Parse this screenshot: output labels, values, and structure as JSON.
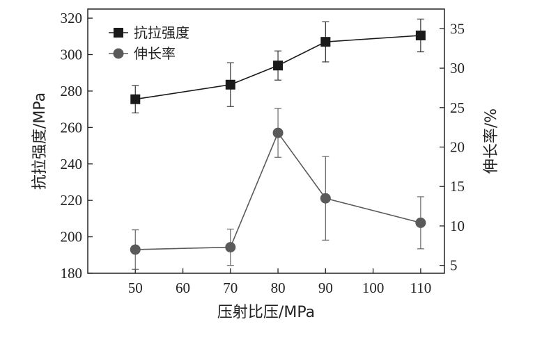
{
  "chart_data": {
    "type": "line",
    "x": [
      50,
      70,
      80,
      90,
      110
    ],
    "xlabel": "压射比压/MPa",
    "ylabel": "抗拉强度/MPa",
    "y2label": "伸长率/%",
    "xlim": [
      40,
      115
    ],
    "ylim": [
      180,
      325
    ],
    "y2lim": [
      4,
      37.5
    ],
    "xticks": [
      50,
      60,
      70,
      80,
      90,
      100,
      110
    ],
    "yticks": [
      180,
      200,
      220,
      240,
      260,
      280,
      300,
      320
    ],
    "y2ticks": [
      5,
      10,
      15,
      20,
      25,
      30,
      35
    ],
    "legend_position": "top-left",
    "grid": false,
    "series": [
      {
        "name": "抗拉强度",
        "axis": "left",
        "marker": "square",
        "color": "#1a1a1a",
        "values": [
          275.5,
          283.5,
          294,
          307,
          310.5
        ],
        "error": [
          7.5,
          12,
          8,
          11,
          9
        ]
      },
      {
        "name": "伸长率",
        "axis": "right",
        "marker": "circle",
        "color": "#5a5a5a",
        "values": [
          7,
          7.3,
          21.8,
          13.5,
          10.4
        ],
        "error": [
          2.5,
          2.3,
          3.1,
          5.3,
          3.3
        ]
      }
    ]
  }
}
